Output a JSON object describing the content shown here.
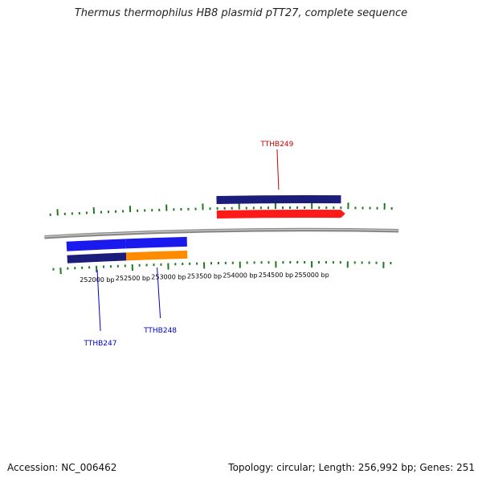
{
  "title": "Thermus thermophilus HB8 plasmid pTT27, complete sequence",
  "footer": {
    "accession": "Accession: NC_006462",
    "summary": "Topology: circular; Length: 256,992 bp; Genes: 251"
  },
  "colors": {
    "backbone": "#888888",
    "tick": "#1f7a1f",
    "outer_strand": "#1c1c7a",
    "inner_forward": "#1a1aee",
    "highlight_forward": "#ff1a1a",
    "highlight_reverse": "#ff8c00",
    "label_blue": "#0000cc",
    "label_red": "#cc0000"
  },
  "scale": {
    "unit": "bp",
    "labels": [
      {
        "bp": 252000,
        "text": "252000 bp"
      },
      {
        "bp": 252500,
        "text": "252500 bp"
      },
      {
        "bp": 253000,
        "text": "253000 bp"
      },
      {
        "bp": 253500,
        "text": "253500 bp"
      },
      {
        "bp": 254000,
        "text": "254000 bp"
      },
      {
        "bp": 254500,
        "text": "254500 bp"
      },
      {
        "bp": 255000,
        "text": "255000 bp"
      }
    ]
  },
  "genes": [
    {
      "id": "TTHB247",
      "label": "TTHB247",
      "start": 251600,
      "end": 252420,
      "strand": "-",
      "color_key": "label_blue"
    },
    {
      "id": "TTHB248",
      "label": "TTHB248",
      "start": 252420,
      "end": 253270,
      "strand": "-",
      "color_key": "label_blue"
    },
    {
      "id": "TTHB249",
      "label": "TTHB249",
      "start": 253690,
      "end": 255400,
      "strand": "+",
      "color_key": "label_red"
    }
  ]
}
